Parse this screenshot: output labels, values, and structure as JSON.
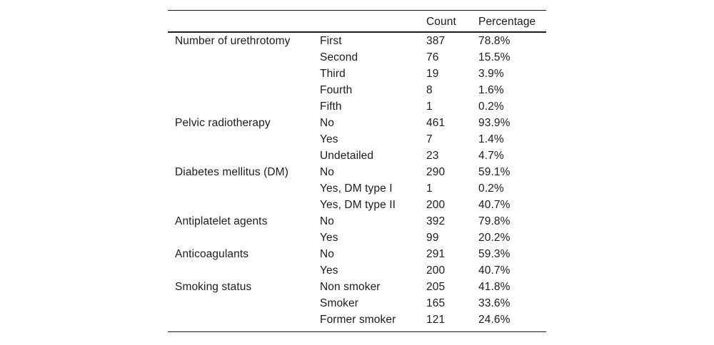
{
  "colors": {
    "text": "#1c1c1c",
    "rule": "#1c1c1c",
    "background": "#ffffff"
  },
  "table": {
    "headers": {
      "group": "",
      "level": "",
      "count": "Count",
      "percentage": "Percentage"
    },
    "groups": [
      {
        "label": "Number of urethrotomy",
        "rows": [
          {
            "level": "First",
            "count": "387",
            "percentage": "78.8%"
          },
          {
            "level": "Second",
            "count": "76",
            "percentage": "15.5%"
          },
          {
            "level": "Third",
            "count": "19",
            "percentage": "3.9%"
          },
          {
            "level": "Fourth",
            "count": "8",
            "percentage": "1.6%"
          },
          {
            "level": "Fifth",
            "count": "1",
            "percentage": "0.2%"
          }
        ]
      },
      {
        "label": "Pelvic radiotherapy",
        "rows": [
          {
            "level": "No",
            "count": "461",
            "percentage": "93.9%"
          },
          {
            "level": "Yes",
            "count": "7",
            "percentage": "1.4%"
          },
          {
            "level": "Undetailed",
            "count": "23",
            "percentage": "4.7%"
          }
        ]
      },
      {
        "label": "Diabetes mellitus (DM)",
        "rows": [
          {
            "level": "No",
            "count": "290",
            "percentage": "59.1%"
          },
          {
            "level": "Yes, DM type I",
            "count": "1",
            "percentage": "0.2%"
          },
          {
            "level": "Yes, DM type II",
            "count": "200",
            "percentage": "40.7%"
          }
        ]
      },
      {
        "label": "Antiplatelet agents",
        "rows": [
          {
            "level": "No",
            "count": "392",
            "percentage": "79.8%"
          },
          {
            "level": "Yes",
            "count": "99",
            "percentage": "20.2%"
          }
        ]
      },
      {
        "label": "Anticoagulants",
        "rows": [
          {
            "level": "No",
            "count": "291",
            "percentage": "59.3%"
          },
          {
            "level": "Yes",
            "count": "200",
            "percentage": "40.7%"
          }
        ]
      },
      {
        "label": "Smoking status",
        "rows": [
          {
            "level": "Non smoker",
            "count": "205",
            "percentage": "41.8%"
          },
          {
            "level": "Smoker",
            "count": "165",
            "percentage": "33.6%"
          },
          {
            "level": "Former smoker",
            "count": "121",
            "percentage": "24.6%"
          }
        ]
      }
    ]
  }
}
